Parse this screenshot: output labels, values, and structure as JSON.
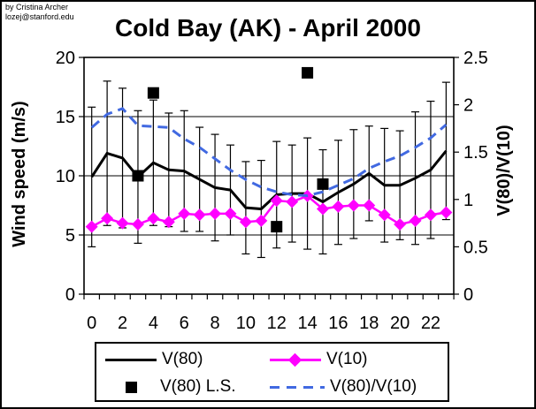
{
  "credit": {
    "line1": "by Cristina Archer",
    "line2": "lozej@stanford.edu"
  },
  "title": "Cold Bay (AK) - April 2000",
  "axes": {
    "left": {
      "title": "Wind speed (m/s)",
      "tick_labels": [
        "0",
        "5",
        "10",
        "15",
        "20"
      ],
      "range": [
        0,
        20
      ]
    },
    "right": {
      "title": "V(80)/V(10)",
      "tick_labels": [
        "0",
        "0.5",
        "1",
        "1.5",
        "2",
        "2.5"
      ],
      "range": [
        0,
        2.5
      ]
    },
    "x": {
      "tick_labels": [
        "0",
        "2",
        "4",
        "6",
        "8",
        "10",
        "12",
        "14",
        "16",
        "18",
        "20",
        "22"
      ]
    }
  },
  "legend": {
    "items": [
      {
        "label": "V(80)",
        "type": "solid-line",
        "color": "#000000"
      },
      {
        "label": "V(10)",
        "type": "line-with-diamond",
        "color": "#FF00FF"
      },
      {
        "label": "V(80) L.S.",
        "type": "square-marker",
        "color": "#000000"
      },
      {
        "label": "V(80)/V(10)",
        "type": "dashed-line",
        "color": "#4169E1"
      }
    ]
  },
  "chart_data": {
    "type": "line",
    "title": "Cold Bay (AK) - April 2000",
    "hours": [
      0,
      1,
      2,
      3,
      4,
      5,
      6,
      7,
      8,
      9,
      10,
      11,
      12,
      13,
      14,
      15,
      16,
      17,
      18,
      19,
      20,
      21,
      22,
      23
    ],
    "x_tick_labels": [
      "0",
      "2",
      "4",
      "6",
      "8",
      "10",
      "12",
      "14",
      "16",
      "18",
      "20",
      "22"
    ],
    "left_axis": {
      "label": "Wind speed (m/s)",
      "range": [
        0,
        20
      ],
      "ticks": [
        0,
        5,
        10,
        15,
        20
      ],
      "gridlines": [
        5,
        10,
        15
      ]
    },
    "right_axis": {
      "label": "V(80)/V(10)",
      "range": [
        0,
        2.5
      ],
      "ticks": [
        0,
        0.5,
        1,
        1.5,
        2,
        2.5
      ]
    },
    "legend_position": "bottom",
    "series": [
      {
        "name": "V(80)",
        "axis": "left",
        "style": "solid black line with error bars",
        "values": [
          9.9,
          11.9,
          11.5,
          9.9,
          11.1,
          10.5,
          10.4,
          9.7,
          9.0,
          8.8,
          7.3,
          7.2,
          8.4,
          8.5,
          8.5,
          7.8,
          8.6,
          9.3,
          10.2,
          9.2,
          9.2,
          9.8,
          10.5,
          12.1
        ],
        "error_bars": [
          5.9,
          6.1,
          5.9,
          5.6,
          5.3,
          4.8,
          5.1,
          4.4,
          4.5,
          3.8,
          3.9,
          4.1,
          4.5,
          4.1,
          4.7,
          4.4,
          4.4,
          4.6,
          4.0,
          4.8,
          4.6,
          5.6,
          5.8,
          5.8
        ]
      },
      {
        "name": "V(10)",
        "axis": "left",
        "style": "magenta line with diamond markers",
        "values": [
          5.7,
          6.4,
          6.0,
          5.9,
          6.4,
          6.1,
          6.8,
          6.7,
          6.8,
          6.8,
          6.1,
          6.2,
          7.9,
          7.8,
          8.3,
          7.2,
          7.4,
          7.5,
          7.5,
          6.7,
          5.9,
          6.2,
          6.7,
          6.9
        ]
      },
      {
        "name": "V(80) L.S.",
        "axis": "left",
        "style": "black square markers",
        "points": [
          {
            "hour": 3,
            "value": 10.0
          },
          {
            "hour": 4,
            "value": 17.0
          },
          {
            "hour": 12,
            "value": 5.7
          },
          {
            "hour": 14,
            "value": 18.7
          },
          {
            "hour": 15,
            "value": 9.3
          }
        ]
      },
      {
        "name": "V(80)/V(10)",
        "axis": "right",
        "style": "blue dashed line",
        "values": [
          1.76,
          1.9,
          1.96,
          1.78,
          1.77,
          1.76,
          1.64,
          1.55,
          1.43,
          1.31,
          1.21,
          1.13,
          1.08,
          1.05,
          1.04,
          1.08,
          1.15,
          1.22,
          1.33,
          1.4,
          1.46,
          1.55,
          1.65,
          1.79
        ]
      }
    ]
  }
}
